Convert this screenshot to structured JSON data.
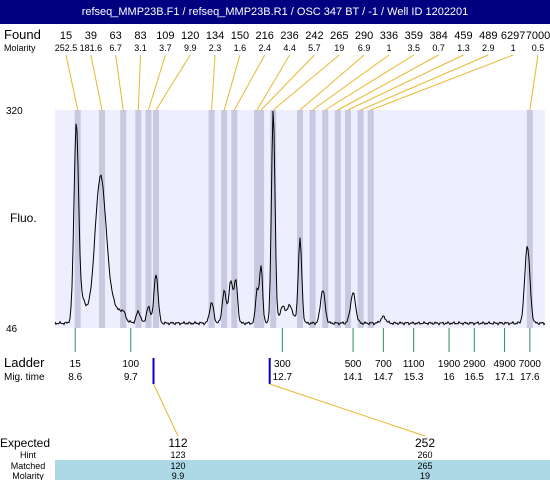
{
  "window": {
    "title": "refseq_MMP23B.F1 / refseq_MMP23B.R1 / OSC 347 BT / -1 / Well ID 1202201"
  },
  "labels": {
    "found": "Found",
    "molarity": "Molarity",
    "fluo": "Fluo.",
    "ladder": "Ladder",
    "mig_time": "Mig. time",
    "expected": "Expected",
    "hint": "Hint",
    "matched": "Matched",
    "molarity_bottom": "Molarity"
  },
  "colors": {
    "title_bg": "#000080",
    "plot_bg": "#eeeeff",
    "band": "#c8c8e0",
    "found_line": "#e8b830",
    "ladder_tick": "#2e8b57",
    "expected_marker": "#0000cc",
    "matched_bg": "#add8e6"
  },
  "chart_data": {
    "type": "line",
    "y_axis": {
      "top_label": "320",
      "bottom_label": "46",
      "ylim": [
        46,
        320
      ]
    },
    "x_axis": {
      "xlim": [
        8.2,
        17.9
      ],
      "unit": "min"
    },
    "found_peaks": [
      {
        "size": "15",
        "molarity": "252.5",
        "time": 8.65
      },
      {
        "size": "39",
        "molarity": "181.6",
        "time": 9.13
      },
      {
        "size": "63",
        "molarity": "6.7",
        "time": 9.55
      },
      {
        "size": "83",
        "molarity": "3.1",
        "time": 9.85
      },
      {
        "size": "109",
        "molarity": "3.7",
        "time": 10.05
      },
      {
        "size": "120",
        "molarity": "9.9",
        "time": 10.2
      },
      {
        "size": "134",
        "molarity": "2.3",
        "time": 11.3
      },
      {
        "size": "150",
        "molarity": "1.6",
        "time": 11.55
      },
      {
        "size": "216",
        "molarity": "2.4",
        "time": 11.75
      },
      {
        "size": "236",
        "molarity": "4.4",
        "time": 12.2
      },
      {
        "size": "242",
        "molarity": "5.7",
        "time": 12.28
      },
      {
        "size": "265",
        "molarity": "19",
        "time": 12.52
      },
      {
        "size": "290",
        "molarity": "6.9",
        "time": 13.05
      },
      {
        "size": "336",
        "molarity": "1",
        "time": 13.3
      },
      {
        "size": "359",
        "molarity": "3.5",
        "time": 13.55
      },
      {
        "size": "384",
        "molarity": "0.7",
        "time": 13.8
      },
      {
        "size": "459",
        "molarity": "1.3",
        "time": 14.0
      },
      {
        "size": "489",
        "molarity": "2.9",
        "time": 14.25
      },
      {
        "size": "6297",
        "molarity": "1",
        "time": 14.45
      },
      {
        "size": "7000",
        "molarity": "0.5",
        "time": 17.6
      }
    ],
    "ladder": [
      {
        "size": "15",
        "time": "8.6",
        "t": 8.6
      },
      {
        "size": "100",
        "time": "9.7",
        "t": 9.7
      },
      {
        "size": "300",
        "time": "12.7",
        "t": 12.7
      },
      {
        "size": "500",
        "time": "14.1",
        "t": 14.1
      },
      {
        "size": "700",
        "time": "14.7",
        "t": 14.7
      },
      {
        "size": "1100",
        "time": "15.3",
        "t": 15.3
      },
      {
        "size": "1900",
        "time": "16",
        "t": 16.0
      },
      {
        "size": "2900",
        "time": "16.5",
        "t": 16.5
      },
      {
        "size": "4900",
        "time": "17.1",
        "t": 17.1
      },
      {
        "size": "7000",
        "time": "17.6",
        "t": 17.6
      }
    ],
    "expected": [
      {
        "expected": "112",
        "hint": "123",
        "matched": "120",
        "molarity": "9.9",
        "time": 10.15
      },
      {
        "expected": "252",
        "hint": "260",
        "matched": "265",
        "molarity": "19",
        "time": 12.45
      }
    ],
    "trace": {
      "baseline": 52,
      "noise": 2,
      "peaks": [
        {
          "t": 8.62,
          "h": 236,
          "w": 0.045
        },
        {
          "t": 8.72,
          "h": 30,
          "w": 0.09
        },
        {
          "t": 9.1,
          "h": 180,
          "w": 0.11
        },
        {
          "t": 9.35,
          "h": 20,
          "w": 0.15
        },
        {
          "t": 9.55,
          "h": 8,
          "w": 0.04
        },
        {
          "t": 9.85,
          "h": 15,
          "w": 0.04
        },
        {
          "t": 10.05,
          "h": 20,
          "w": 0.04
        },
        {
          "t": 10.2,
          "h": 62,
          "w": 0.04
        },
        {
          "t": 11.3,
          "h": 26,
          "w": 0.04
        },
        {
          "t": 11.55,
          "h": 40,
          "w": 0.04
        },
        {
          "t": 11.68,
          "h": 52,
          "w": 0.04
        },
        {
          "t": 11.78,
          "h": 52,
          "w": 0.035
        },
        {
          "t": 12.2,
          "h": 42,
          "w": 0.03
        },
        {
          "t": 12.28,
          "h": 72,
          "w": 0.03
        },
        {
          "t": 12.52,
          "h": 268,
          "w": 0.035
        },
        {
          "t": 12.7,
          "h": 20,
          "w": 0.05
        },
        {
          "t": 12.85,
          "h": 22,
          "w": 0.06
        },
        {
          "t": 13.05,
          "h": 106,
          "w": 0.035
        },
        {
          "t": 13.5,
          "h": 42,
          "w": 0.045
        },
        {
          "t": 14.1,
          "h": 38,
          "w": 0.05
        },
        {
          "t": 14.7,
          "h": 8,
          "w": 0.05
        },
        {
          "t": 17.55,
          "h": 98,
          "w": 0.05
        }
      ]
    }
  }
}
